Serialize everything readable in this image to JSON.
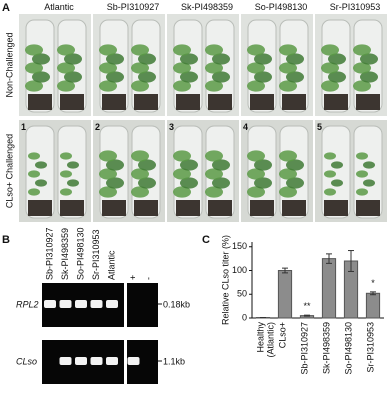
{
  "panel_a": {
    "label": "A",
    "columns": [
      {
        "number": "1",
        "name": "Atlantic"
      },
      {
        "number": "2",
        "name": "Sb-PI310927"
      },
      {
        "number": "3",
        "name": "Sk-PI498359"
      },
      {
        "number": "4",
        "name": "So-PI498130"
      },
      {
        "number": "5",
        "name": "Sr-PI310953"
      }
    ],
    "rows": [
      "Non-Challenged",
      "CLso+ Challenged"
    ]
  },
  "panel_b": {
    "label": "B",
    "lanes": [
      "Sb-PI310927",
      "Sk-PI498359",
      "So-PI498130",
      "Sr-PI310953",
      "Atlantic",
      "+",
      "-"
    ],
    "gels": [
      {
        "name": "RPL2",
        "size": "0.18kb"
      },
      {
        "name": "CLso",
        "size": "1.1kb"
      }
    ]
  },
  "chart_data": {
    "type": "bar",
    "label": "C",
    "y_label": "Relative CLso titer (%)",
    "categories": [
      "Healthy",
      "CLso+",
      "Sb-PI310927",
      "Sk-PI498359",
      "So-PI498130",
      "Sr-PI310953"
    ],
    "sublabels": [
      "(Atlantic)",
      null,
      null,
      null,
      null,
      null
    ],
    "values": [
      1,
      100,
      5,
      125,
      120,
      52
    ],
    "errors": [
      0,
      5,
      1,
      10,
      22,
      3
    ],
    "significance": [
      null,
      null,
      "**",
      null,
      null,
      "*"
    ],
    "color": "#8c8c8c",
    "ylim": [
      0,
      160
    ],
    "yticks": [
      0,
      50,
      100,
      150
    ]
  }
}
